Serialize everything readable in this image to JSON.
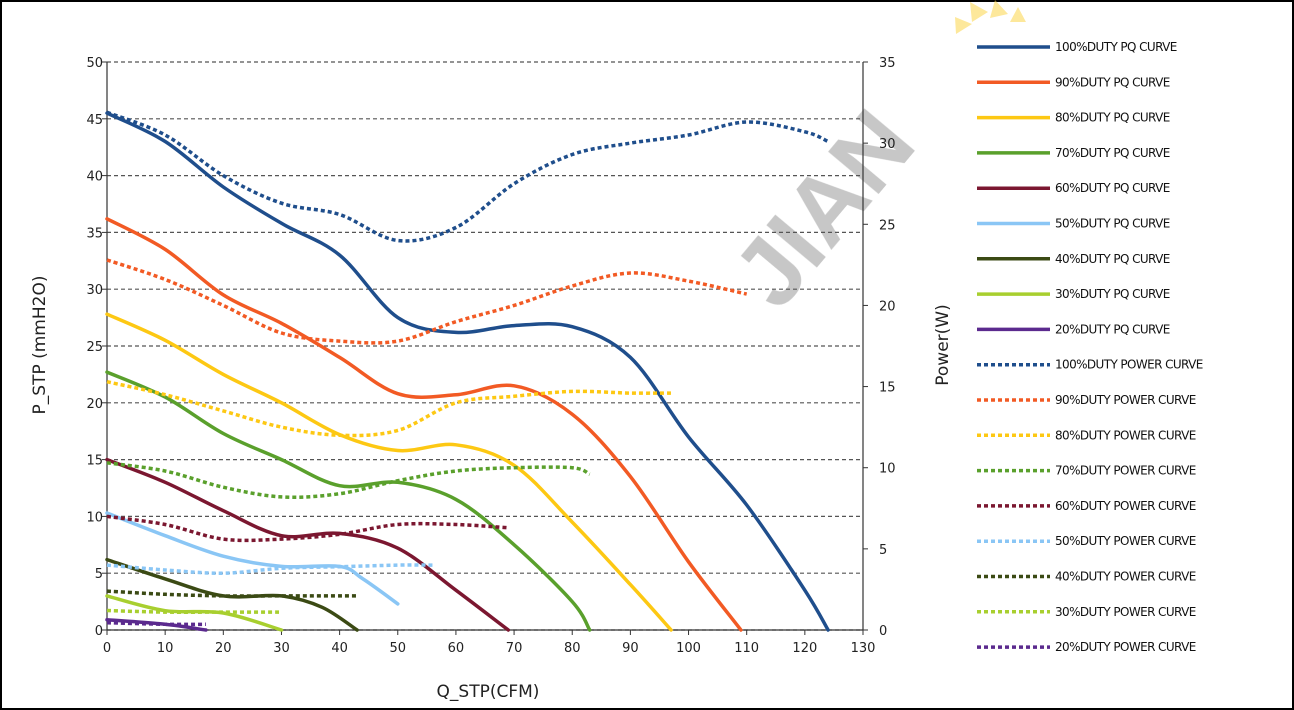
{
  "chart_data": {
    "type": "line",
    "xlabel": "Q_STP(CFM)",
    "ylabel": "P_STP (mmH2O)",
    "y2label": "Power(W)",
    "xlim": [
      0,
      130
    ],
    "ylim": [
      0,
      50
    ],
    "y2lim": [
      0,
      35
    ],
    "x_ticks": [
      "0",
      "10",
      "20",
      "30",
      "40",
      "50",
      "60",
      "70",
      "80",
      "90",
      "100",
      "110",
      "120",
      "130"
    ],
    "y_ticks": [
      "0",
      "5",
      "10",
      "15",
      "20",
      "25",
      "30",
      "35",
      "40",
      "45",
      "50"
    ],
    "y2_ticks": [
      "0",
      "5",
      "10",
      "15",
      "20",
      "25",
      "30",
      "35"
    ],
    "grid": "horizontal dashed",
    "legend_position": "right",
    "watermark": "JIAN",
    "series": [
      {
        "name": "100%DUTY PQ CURVE",
        "axis": "left",
        "style": "solid",
        "color": "#1f4e8c",
        "points": [
          [
            0,
            45.5
          ],
          [
            10,
            43
          ],
          [
            20,
            39
          ],
          [
            30,
            35.8
          ],
          [
            40,
            33
          ],
          [
            50,
            27.5
          ],
          [
            60,
            26.2
          ],
          [
            70,
            26.8
          ],
          [
            80,
            26.7
          ],
          [
            90,
            24
          ],
          [
            100,
            17
          ],
          [
            110,
            11
          ],
          [
            120,
            3.5
          ],
          [
            124,
            0
          ]
        ]
      },
      {
        "name": "90%DUTY PQ CURVE",
        "axis": "left",
        "style": "solid",
        "color": "#f25a24",
        "points": [
          [
            0,
            36.2
          ],
          [
            10,
            33.5
          ],
          [
            20,
            29.5
          ],
          [
            30,
            27
          ],
          [
            40,
            24
          ],
          [
            50,
            20.8
          ],
          [
            60,
            20.7
          ],
          [
            70,
            21.5
          ],
          [
            80,
            19
          ],
          [
            90,
            13.5
          ],
          [
            100,
            6
          ],
          [
            109,
            0
          ]
        ]
      },
      {
        "name": "80%DUTY PQ CURVE",
        "axis": "left",
        "style": "solid",
        "color": "#fdc813",
        "points": [
          [
            0,
            27.8
          ],
          [
            10,
            25.5
          ],
          [
            20,
            22.5
          ],
          [
            30,
            20
          ],
          [
            40,
            17.2
          ],
          [
            50,
            15.8
          ],
          [
            60,
            16.3
          ],
          [
            70,
            14.5
          ],
          [
            80,
            9.5
          ],
          [
            90,
            4
          ],
          [
            97,
            0
          ]
        ]
      },
      {
        "name": "70%DUTY PQ CURVE",
        "axis": "left",
        "style": "solid",
        "color": "#5aa02c",
        "points": [
          [
            0,
            22.7
          ],
          [
            10,
            20.5
          ],
          [
            20,
            17.3
          ],
          [
            30,
            15
          ],
          [
            40,
            12.7
          ],
          [
            50,
            13
          ],
          [
            60,
            11.5
          ],
          [
            70,
            7.5
          ],
          [
            80,
            2.5
          ],
          [
            83,
            0
          ]
        ]
      },
      {
        "name": "60%DUTY PQ CURVE",
        "axis": "left",
        "style": "solid",
        "color": "#7b1730",
        "points": [
          [
            0,
            15
          ],
          [
            10,
            13
          ],
          [
            20,
            10.5
          ],
          [
            30,
            8.3
          ],
          [
            40,
            8.5
          ],
          [
            50,
            7.2
          ],
          [
            60,
            3.5
          ],
          [
            69,
            0
          ]
        ]
      },
      {
        "name": "50%DUTY PQ CURVE",
        "axis": "left",
        "style": "solid",
        "color": "#8ac6f5",
        "points": [
          [
            0,
            10.3
          ],
          [
            10,
            8.3
          ],
          [
            20,
            6.5
          ],
          [
            30,
            5.6
          ],
          [
            40,
            5.6
          ],
          [
            44,
            4.5
          ],
          [
            50,
            2.3
          ]
        ]
      },
      {
        "name": "40%DUTY PQ CURVE",
        "axis": "left",
        "style": "solid",
        "color": "#3b4a14",
        "points": [
          [
            0,
            6.2
          ],
          [
            10,
            4.5
          ],
          [
            20,
            3
          ],
          [
            30,
            3
          ],
          [
            37,
            2
          ],
          [
            43,
            0
          ]
        ]
      },
      {
        "name": "30%DUTY PQ CURVE",
        "axis": "left",
        "style": "solid",
        "color": "#a8cf2f",
        "points": [
          [
            0,
            3
          ],
          [
            10,
            1.7
          ],
          [
            20,
            1.5
          ],
          [
            30,
            0
          ]
        ]
      },
      {
        "name": "20%DUTY PQ CURVE",
        "axis": "left",
        "style": "solid",
        "color": "#5b2a8e",
        "points": [
          [
            0,
            0.9
          ],
          [
            10,
            0.5
          ],
          [
            17,
            0
          ]
        ]
      },
      {
        "name": "100%DUTY POWER CURVE",
        "axis": "right",
        "style": "dotted",
        "color": "#1f4e8c",
        "points": [
          [
            0,
            31.9
          ],
          [
            10,
            30.5
          ],
          [
            20,
            28
          ],
          [
            30,
            26.3
          ],
          [
            40,
            25.6
          ],
          [
            50,
            24
          ],
          [
            60,
            24.8
          ],
          [
            70,
            27.5
          ],
          [
            80,
            29.3
          ],
          [
            90,
            30
          ],
          [
            100,
            30.5
          ],
          [
            110,
            31.3
          ],
          [
            120,
            30.7
          ],
          [
            124,
            30.1
          ]
        ]
      },
      {
        "name": "90%DUTY POWER CURVE",
        "axis": "right",
        "style": "dotted",
        "color": "#f25a24",
        "points": [
          [
            0,
            22.8
          ],
          [
            10,
            21.6
          ],
          [
            20,
            20
          ],
          [
            30,
            18.3
          ],
          [
            40,
            17.8
          ],
          [
            50,
            17.8
          ],
          [
            60,
            19
          ],
          [
            70,
            20
          ],
          [
            80,
            21.2
          ],
          [
            90,
            22
          ],
          [
            100,
            21.5
          ],
          [
            110,
            20.7
          ]
        ]
      },
      {
        "name": "80%DUTY POWER CURVE",
        "axis": "right",
        "style": "dotted",
        "color": "#fdc813",
        "points": [
          [
            0,
            15.3
          ],
          [
            10,
            14.5
          ],
          [
            20,
            13.5
          ],
          [
            30,
            12.5
          ],
          [
            40,
            12
          ],
          [
            50,
            12.3
          ],
          [
            60,
            14
          ],
          [
            70,
            14.4
          ],
          [
            80,
            14.7
          ],
          [
            90,
            14.6
          ],
          [
            97,
            14.6
          ]
        ]
      },
      {
        "name": "70%DUTY POWER CURVE",
        "axis": "right",
        "style": "dotted",
        "color": "#5aa02c",
        "points": [
          [
            0,
            10.3
          ],
          [
            10,
            9.8
          ],
          [
            20,
            8.8
          ],
          [
            30,
            8.2
          ],
          [
            40,
            8.4
          ],
          [
            50,
            9.2
          ],
          [
            60,
            9.8
          ],
          [
            70,
            10
          ],
          [
            80,
            10
          ],
          [
            83,
            9.6
          ]
        ]
      },
      {
        "name": "60%DUTY POWER CURVE",
        "axis": "right",
        "style": "dotted",
        "color": "#7b1730",
        "points": [
          [
            0,
            7
          ],
          [
            10,
            6.5
          ],
          [
            20,
            5.6
          ],
          [
            30,
            5.6
          ],
          [
            40,
            5.9
          ],
          [
            50,
            6.5
          ],
          [
            60,
            6.5
          ],
          [
            69,
            6.3
          ]
        ]
      },
      {
        "name": "50%DUTY POWER CURVE",
        "axis": "right",
        "style": "dotted",
        "color": "#8ac6f5",
        "points": [
          [
            0,
            4
          ],
          [
            10,
            3.7
          ],
          [
            20,
            3.5
          ],
          [
            30,
            3.8
          ],
          [
            40,
            3.9
          ],
          [
            50,
            4
          ],
          [
            56,
            4
          ]
        ]
      },
      {
        "name": "40%DUTY POWER CURVE",
        "axis": "right",
        "style": "dotted",
        "color": "#3b4a14",
        "points": [
          [
            0,
            2.4
          ],
          [
            10,
            2.2
          ],
          [
            20,
            2.1
          ],
          [
            30,
            2.1
          ],
          [
            43,
            2.1
          ]
        ]
      },
      {
        "name": "30%DUTY POWER CURVE",
        "axis": "right",
        "style": "dotted",
        "color": "#a8cf2f",
        "points": [
          [
            0,
            1.2
          ],
          [
            10,
            1.1
          ],
          [
            20,
            1.1
          ],
          [
            30,
            1.1
          ]
        ]
      },
      {
        "name": "20%DUTY POWER CURVE",
        "axis": "right",
        "style": "dotted",
        "color": "#5b2a8e",
        "points": [
          [
            0,
            0.45
          ],
          [
            10,
            0.35
          ],
          [
            17,
            0.35
          ]
        ]
      }
    ]
  }
}
